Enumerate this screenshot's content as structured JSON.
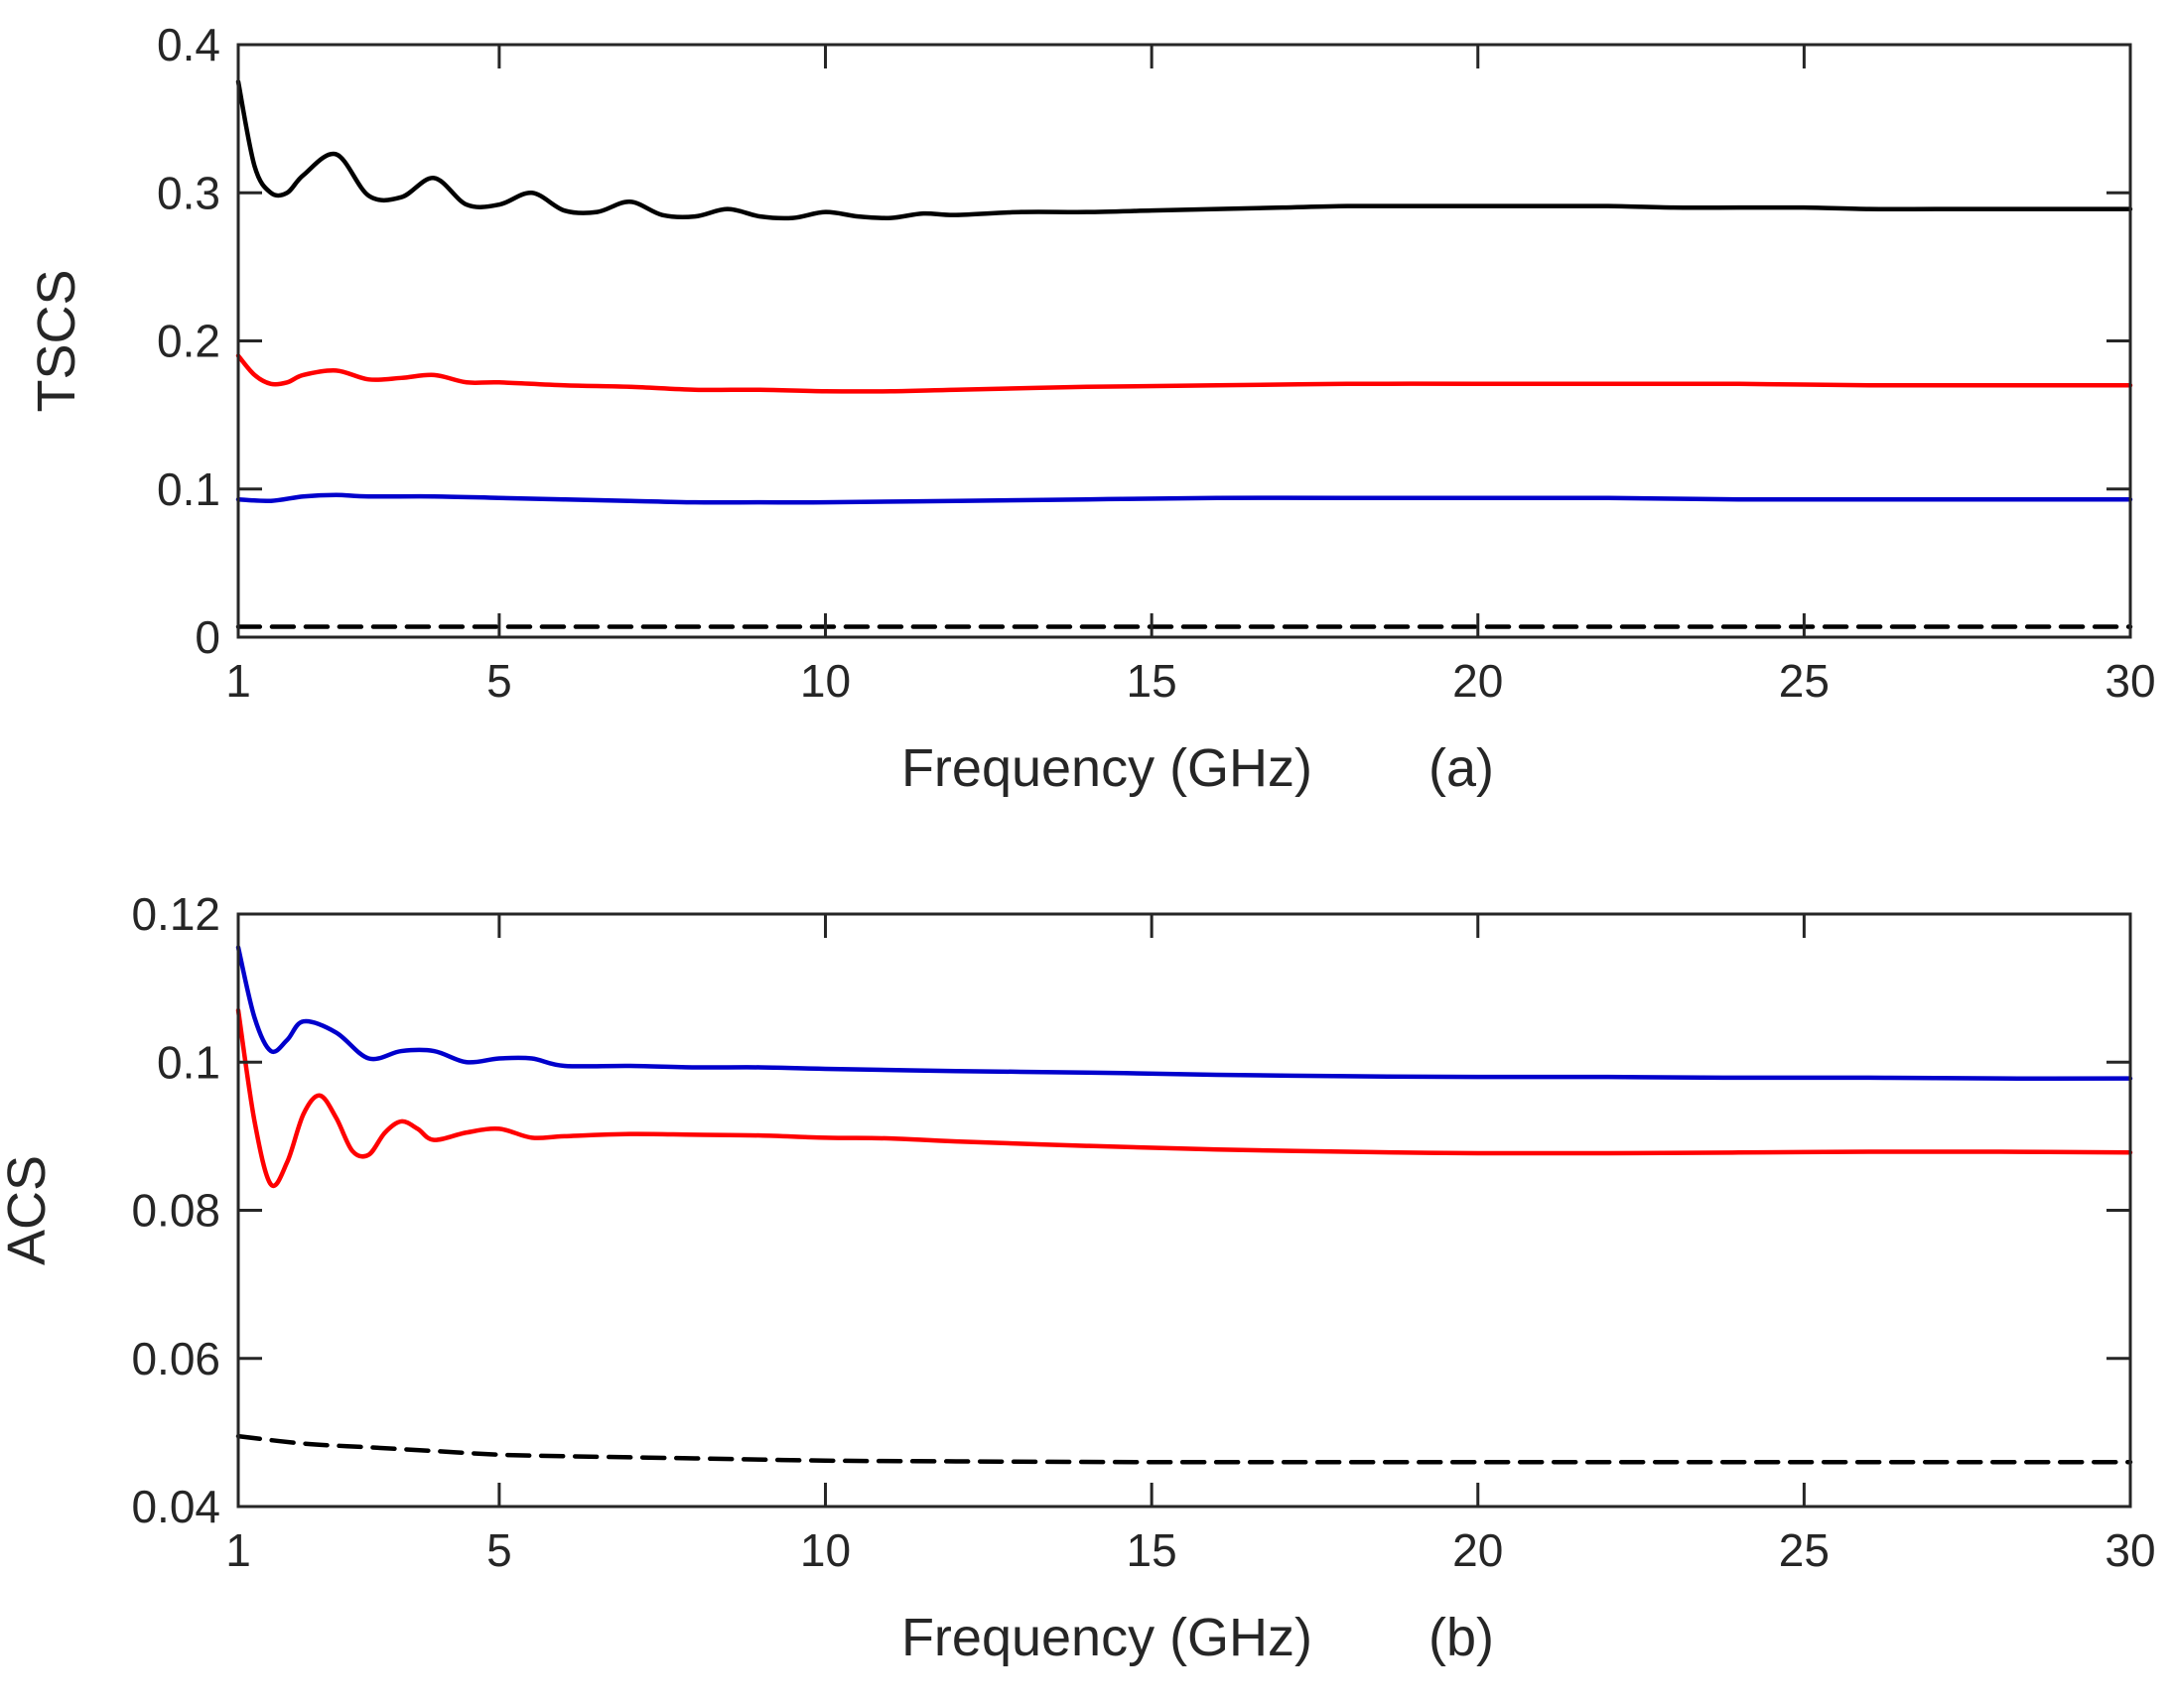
{
  "chart_data": [
    {
      "panel": "(a)",
      "type": "line",
      "title": "",
      "xlabel": "Frequency (GHz)",
      "ylabel": "TSCS",
      "xlim": [
        1,
        30
      ],
      "ylim": [
        0,
        0.4
      ],
      "xticks": [
        1,
        5,
        10,
        15,
        20,
        25,
        30
      ],
      "xtick_labels": [
        "1",
        "5",
        "10",
        "15",
        "20",
        "25",
        "30"
      ],
      "yticks": [
        0,
        0.1,
        0.2,
        0.3,
        0.4
      ],
      "ytick_labels": [
        "0",
        "0.1",
        "0.2",
        "0.3",
        "0.4"
      ],
      "grid": false,
      "series": [
        {
          "name": "black",
          "color": "#000000",
          "style": "solid",
          "x": [
            1,
            1.25,
            1.5,
            1.75,
            2,
            2.5,
            3,
            3.5,
            4,
            4.5,
            5,
            5.5,
            6,
            6.5,
            7,
            7.5,
            8,
            8.5,
            9,
            9.5,
            10,
            10.5,
            11,
            11.5,
            12,
            13,
            14,
            15,
            16,
            17,
            18,
            19,
            20,
            21,
            22,
            23,
            24,
            25,
            26,
            27,
            28,
            29,
            30
          ],
          "values": [
            0.375,
            0.318,
            0.3,
            0.3,
            0.312,
            0.326,
            0.298,
            0.297,
            0.31,
            0.292,
            0.292,
            0.3,
            0.288,
            0.287,
            0.294,
            0.285,
            0.284,
            0.289,
            0.284,
            0.283,
            0.287,
            0.284,
            0.283,
            0.286,
            0.285,
            0.287,
            0.287,
            0.288,
            0.289,
            0.29,
            0.291,
            0.291,
            0.291,
            0.291,
            0.291,
            0.29,
            0.29,
            0.29,
            0.289,
            0.289,
            0.289,
            0.289,
            0.289
          ]
        },
        {
          "name": "red",
          "color": "#ff0000",
          "style": "solid",
          "x": [
            1,
            1.25,
            1.5,
            1.75,
            2,
            2.5,
            3,
            3.5,
            4,
            4.5,
            5,
            6,
            7,
            8,
            9,
            10,
            11,
            12,
            14,
            16,
            18,
            20,
            22,
            24,
            26,
            28,
            30
          ],
          "values": [
            0.19,
            0.177,
            0.171,
            0.172,
            0.177,
            0.18,
            0.174,
            0.175,
            0.177,
            0.172,
            0.172,
            0.17,
            0.169,
            0.167,
            0.167,
            0.166,
            0.166,
            0.167,
            0.169,
            0.17,
            0.171,
            0.171,
            0.171,
            0.171,
            0.17,
            0.17,
            0.17
          ]
        },
        {
          "name": "blue",
          "color": "#0000cc",
          "style": "solid",
          "x": [
            1,
            1.5,
            2,
            2.5,
            3,
            4,
            5,
            6,
            7,
            8,
            9,
            10,
            12,
            14,
            16,
            18,
            20,
            22,
            24,
            26,
            28,
            30
          ],
          "values": [
            0.093,
            0.092,
            0.095,
            0.096,
            0.095,
            0.095,
            0.094,
            0.093,
            0.092,
            0.091,
            0.091,
            0.091,
            0.092,
            0.093,
            0.094,
            0.094,
            0.094,
            0.094,
            0.093,
            0.093,
            0.093,
            0.093
          ]
        },
        {
          "name": "black dashed",
          "color": "#000000",
          "style": "dashed",
          "x": [
            1,
            30
          ],
          "values": [
            0.007,
            0.007
          ]
        }
      ]
    },
    {
      "panel": "(b)",
      "type": "line",
      "title": "",
      "xlabel": "Frequency (GHz)",
      "ylabel": "ACS",
      "xlim": [
        1,
        30
      ],
      "ylim": [
        0.04,
        0.12
      ],
      "xticks": [
        1,
        5,
        10,
        15,
        20,
        25,
        30
      ],
      "xtick_labels": [
        "1",
        "5",
        "10",
        "15",
        "20",
        "25",
        "30"
      ],
      "yticks": [
        0.04,
        0.06,
        0.08,
        0.1,
        0.12
      ],
      "ytick_labels": [
        "0.04",
        "0.06",
        "0.08",
        "0.1",
        "0.12"
      ],
      "grid": false,
      "series": [
        {
          "name": "blue",
          "color": "#0000cc",
          "style": "solid",
          "x": [
            1,
            1.25,
            1.5,
            1.75,
            2,
            2.5,
            3,
            3.5,
            4,
            4.5,
            5,
            5.5,
            6,
            7,
            8,
            9,
            10,
            12,
            14,
            16,
            18,
            20,
            22,
            24,
            26,
            28,
            30
          ],
          "values": [
            0.1155,
            0.106,
            0.1015,
            0.103,
            0.1055,
            0.104,
            0.1005,
            0.1015,
            0.1015,
            0.1,
            0.1005,
            0.1005,
            0.0995,
            0.0995,
            0.0993,
            0.0993,
            0.0991,
            0.0988,
            0.0986,
            0.0983,
            0.0981,
            0.098,
            0.098,
            0.0979,
            0.0979,
            0.0978,
            0.0978
          ]
        },
        {
          "name": "red",
          "color": "#ff0000",
          "style": "solid",
          "x": [
            1,
            1.25,
            1.5,
            1.75,
            2,
            2.25,
            2.5,
            2.75,
            3,
            3.25,
            3.5,
            3.75,
            4,
            4.5,
            5,
            5.5,
            6,
            7,
            8,
            9,
            10,
            11,
            12,
            14,
            16,
            18,
            20,
            22,
            24,
            26,
            28,
            30
          ],
          "values": [
            0.107,
            0.092,
            0.0835,
            0.0865,
            0.093,
            0.0955,
            0.0925,
            0.088,
            0.0875,
            0.0905,
            0.092,
            0.091,
            0.0895,
            0.0905,
            0.091,
            0.0898,
            0.09,
            0.0903,
            0.0902,
            0.0901,
            0.0898,
            0.0897,
            0.0893,
            0.0887,
            0.0882,
            0.0879,
            0.0877,
            0.0877,
            0.0878,
            0.0879,
            0.0879,
            0.0878
          ]
        },
        {
          "name": "black dashed",
          "color": "#000000",
          "style": "dashed",
          "x": [
            1,
            2,
            3,
            4,
            5,
            6,
            8,
            10,
            12,
            15,
            20,
            25,
            30
          ],
          "values": [
            0.0495,
            0.0485,
            0.048,
            0.0475,
            0.047,
            0.0468,
            0.0465,
            0.0462,
            0.0461,
            0.046,
            0.046,
            0.046,
            0.046
          ]
        }
      ]
    }
  ]
}
